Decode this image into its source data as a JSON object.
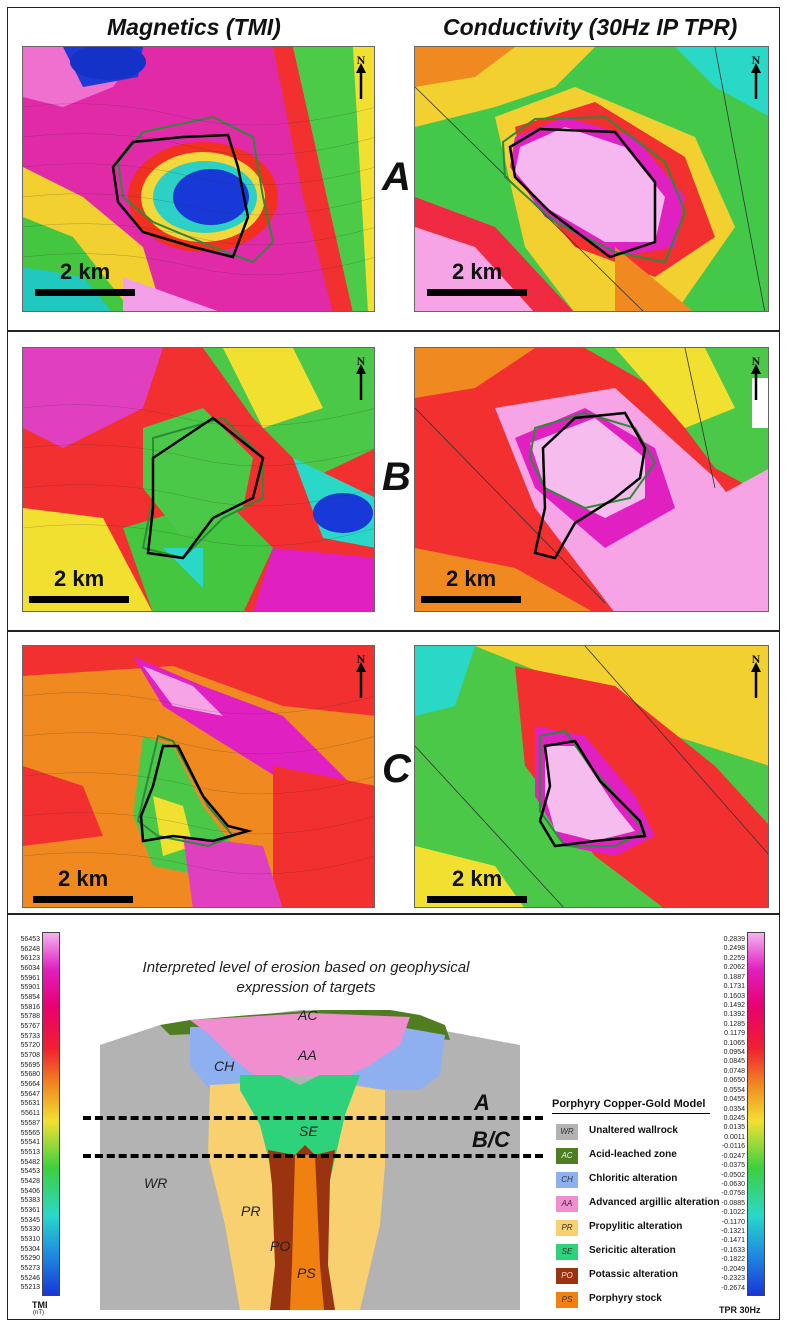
{
  "titles": {
    "magnetics": "Magnetics (TMI)",
    "conductivity": "Conductivity (30Hz IP TPR)"
  },
  "rows": [
    {
      "letter": "A",
      "scale_label": "2 km",
      "north": "N"
    },
    {
      "letter": "B",
      "scale_label": "2 km",
      "north": "N"
    },
    {
      "letter": "C",
      "scale_label": "2 km",
      "north": "N"
    }
  ],
  "erosion": {
    "title": "Interpreted level of erosion based on geophysical expression of targets",
    "level_a": "A",
    "level_bc": "B/C",
    "zone_labels": {
      "AC": "AC",
      "AA": "AA",
      "CH": "CH",
      "SE": "SE",
      "WR": "WR",
      "PR": "PR",
      "PO": "PO",
      "PS": "PS"
    }
  },
  "legend": {
    "title": "Porphyry Copper-Gold Model",
    "items": [
      {
        "code": "WR",
        "label": "Unaltered wallrock",
        "color": "#b3b3b3"
      },
      {
        "code": "AC",
        "label": "Acid-leached zone",
        "color": "#4f7d1f"
      },
      {
        "code": "CH",
        "label": "Chloritic alteration",
        "color": "#8eb0f0"
      },
      {
        "code": "AA",
        "label": "Advanced argillic alteration",
        "color": "#f08ed0"
      },
      {
        "code": "PR",
        "label": "Propylitic alteration",
        "color": "#f8d070"
      },
      {
        "code": "SE",
        "label": "Sericitic alteration",
        "color": "#2ed27a"
      },
      {
        "code": "PO",
        "label": "Potassic alteration",
        "color": "#9a3410"
      },
      {
        "code": "PS",
        "label": "Porphyry stock",
        "color": "#f08010"
      }
    ]
  },
  "tmi_colorbar": {
    "name": "TMI",
    "unit": "(nT)",
    "values": [
      "56453",
      "56248",
      "56123",
      "56034",
      "55961",
      "55901",
      "55854",
      "55816",
      "55788",
      "55767",
      "55733",
      "55720",
      "55708",
      "55695",
      "55680",
      "55664",
      "55647",
      "55631",
      "55611",
      "55587",
      "55565",
      "55541",
      "55513",
      "55482",
      "55453",
      "55428",
      "55406",
      "55383",
      "55361",
      "55345",
      "55330",
      "55310",
      "55304",
      "55290",
      "55273",
      "55246",
      "55213"
    ]
  },
  "tpr_colorbar": {
    "name": "TPR 30Hz",
    "values": [
      "0.2839",
      "0.2498",
      "0.2259",
      "0.2062",
      "0.1887",
      "0.1731",
      "0.1603",
      "0.1492",
      "0.1392",
      "0.1285",
      "0.1179",
      "0.1065",
      "0.0954",
      "0.0845",
      "0.0748",
      "0.0650",
      "0.0554",
      "0.0455",
      "0.0354",
      "0.0245",
      "0.0135",
      "0.0011",
      "-0.0116",
      "-0.0247",
      "-0.0375",
      "-0.0502",
      "-0.0630",
      "-0.0758",
      "-0.0885",
      "-0.1022",
      "-0.1170",
      "-0.1321",
      "-0.1471",
      "-0.1633",
      "-0.1822",
      "-0.2049",
      "-0.2323",
      "-0.2674"
    ]
  },
  "colors": {
    "magenta": "#e020c0",
    "pink": "#f4a8ec",
    "red": "#f02030",
    "orange": "#f08a20",
    "yellow": "#f2e030",
    "green": "#3cd040",
    "cyan": "#2ad8c8",
    "blue": "#1838d8"
  }
}
